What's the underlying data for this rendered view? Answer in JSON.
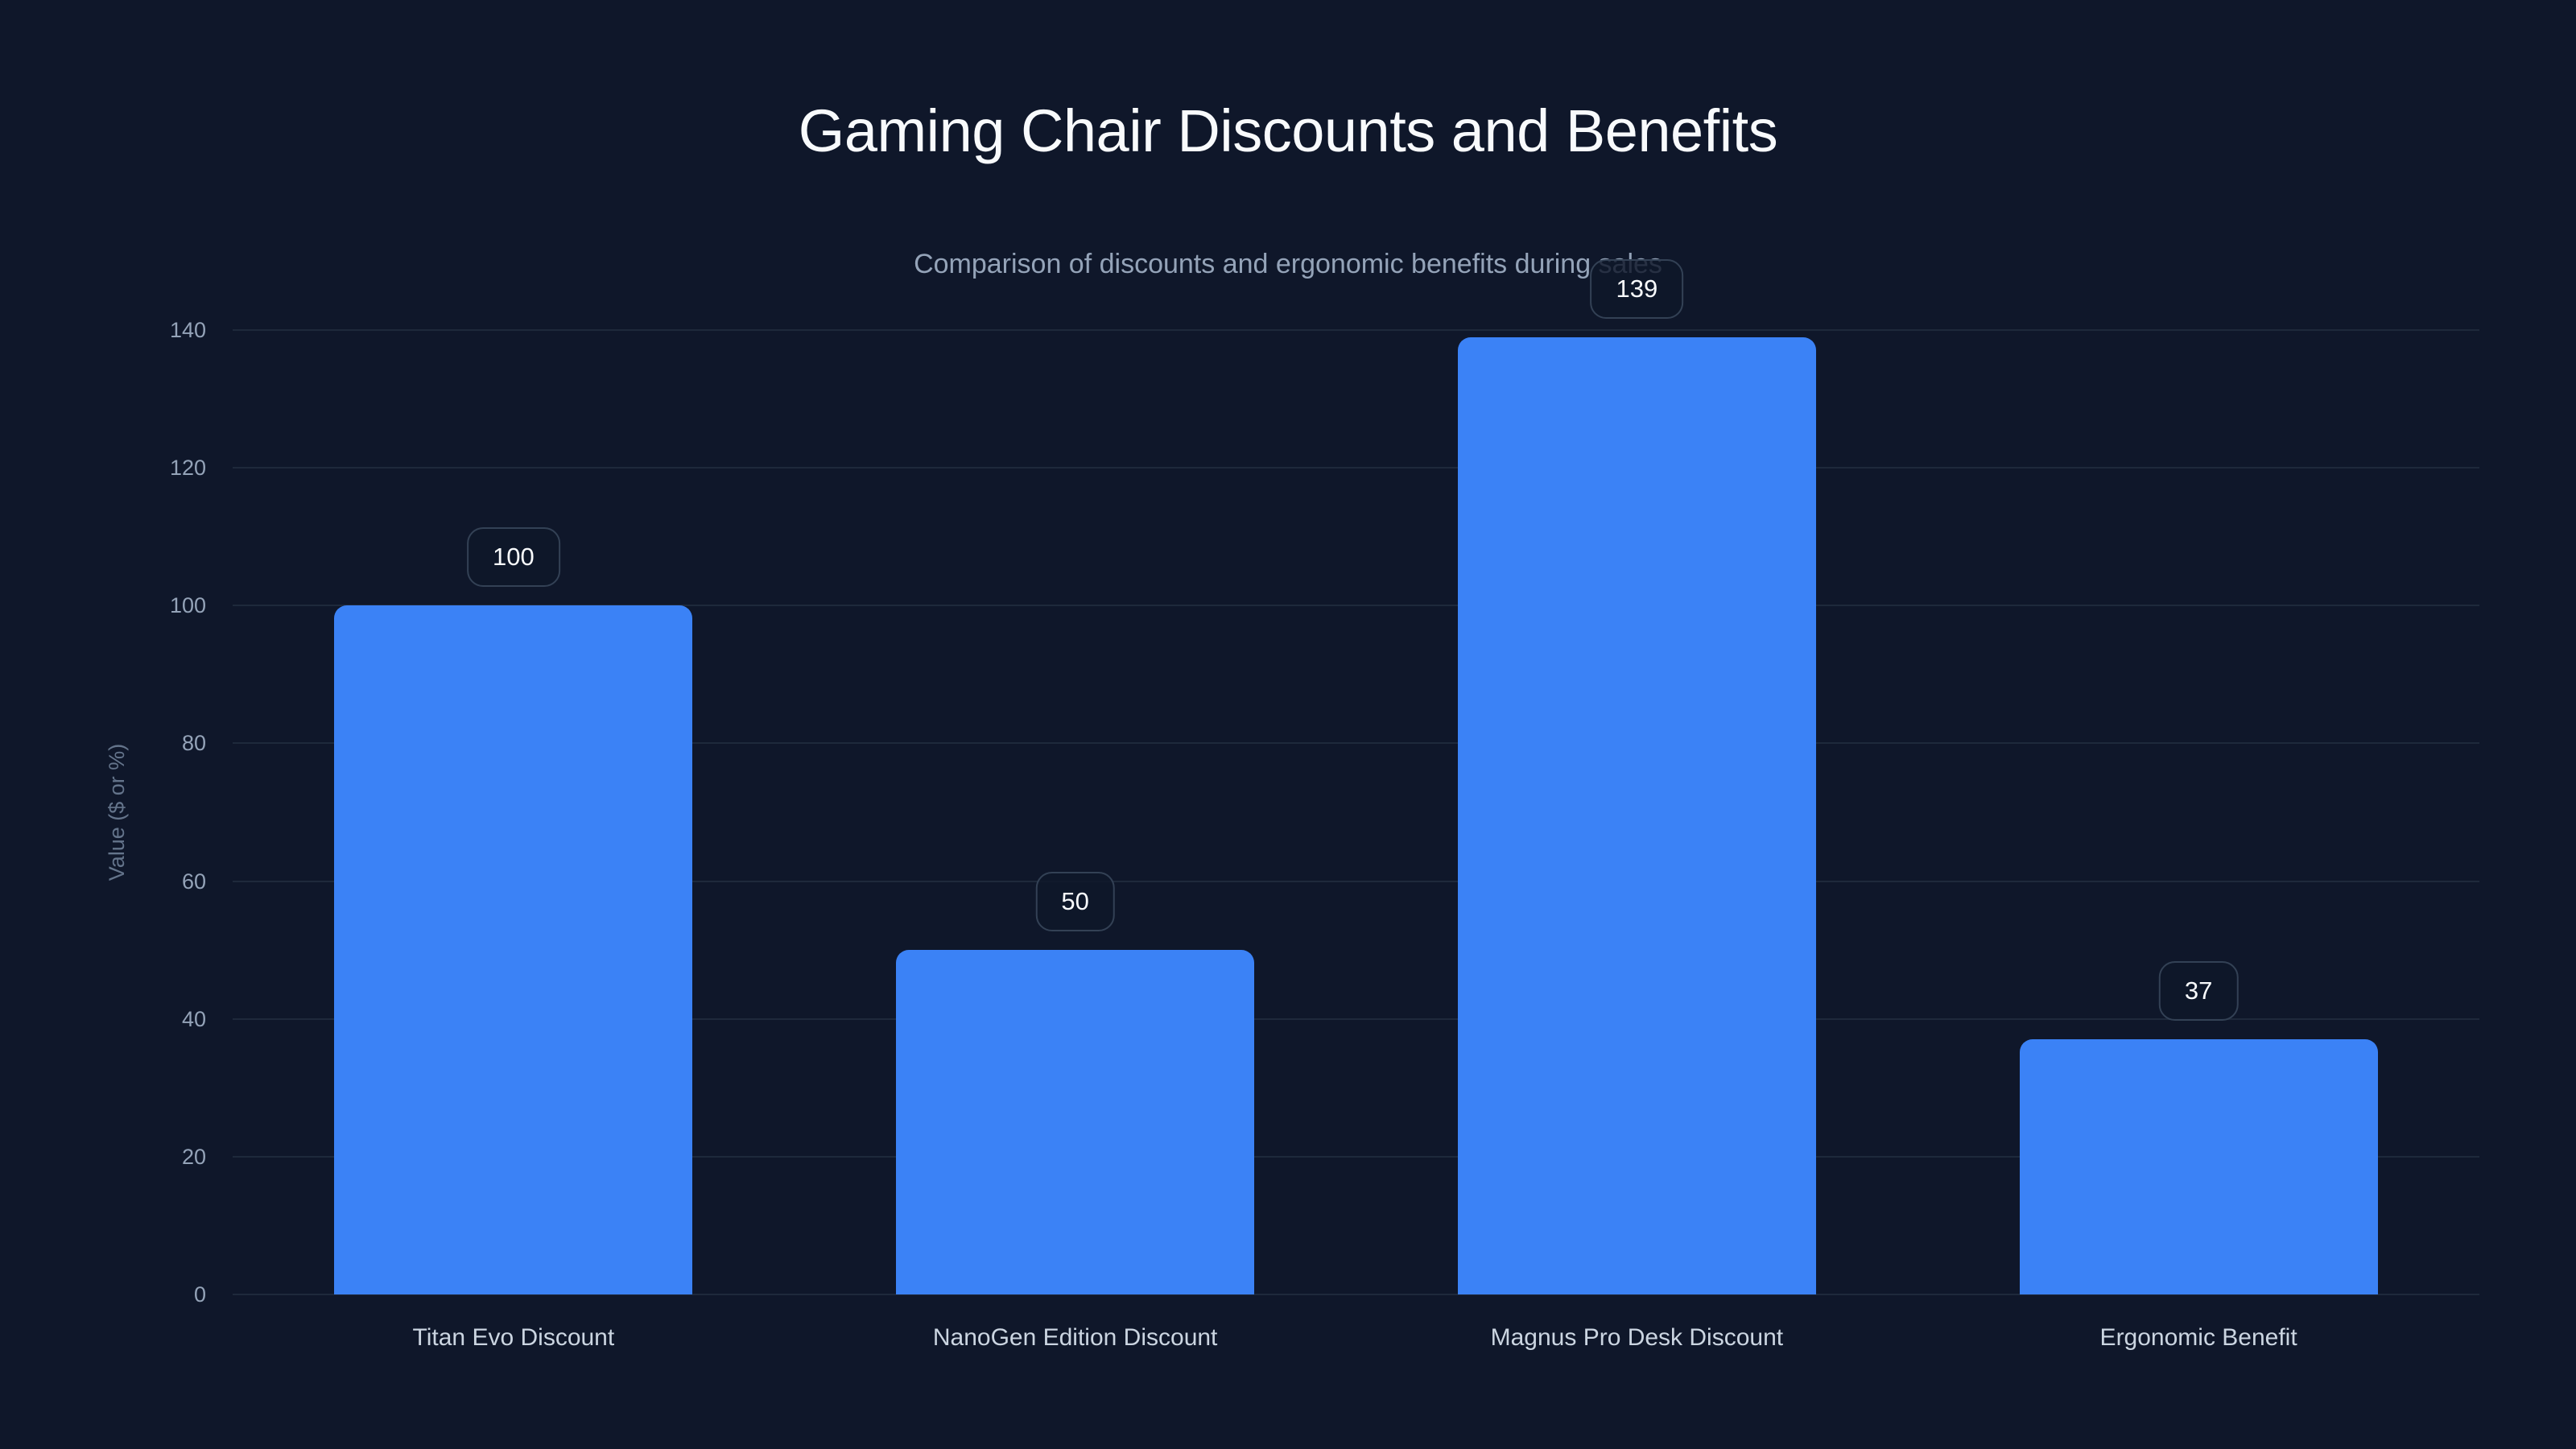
{
  "chart_data": {
    "type": "bar",
    "title": "Gaming Chair Discounts and Benefits",
    "subtitle": "Comparison of discounts and ergonomic benefits during sales",
    "xlabel": "",
    "ylabel": "Value ($ or %)",
    "categories": [
      "Titan Evo Discount",
      "NanoGen Edition Discount",
      "Magnus Pro Desk Discount",
      "Ergonomic Benefit"
    ],
    "values": [
      100,
      50,
      139,
      37
    ],
    "data_labels": [
      "100",
      "50",
      "139",
      "37"
    ],
    "ylim": [
      0,
      140
    ],
    "yticks": [
      0,
      20,
      40,
      60,
      80,
      100,
      120,
      140
    ],
    "grid": true,
    "legend": null,
    "colors": {
      "bar": "#3b82f6",
      "background": "#0f172a",
      "grid": "#1e293b",
      "title": "#f8fafc",
      "subtitle": "#94a3b8",
      "tick": "#94a3b8",
      "category_label": "#cbd5e1",
      "badge_border": "#334155"
    }
  }
}
